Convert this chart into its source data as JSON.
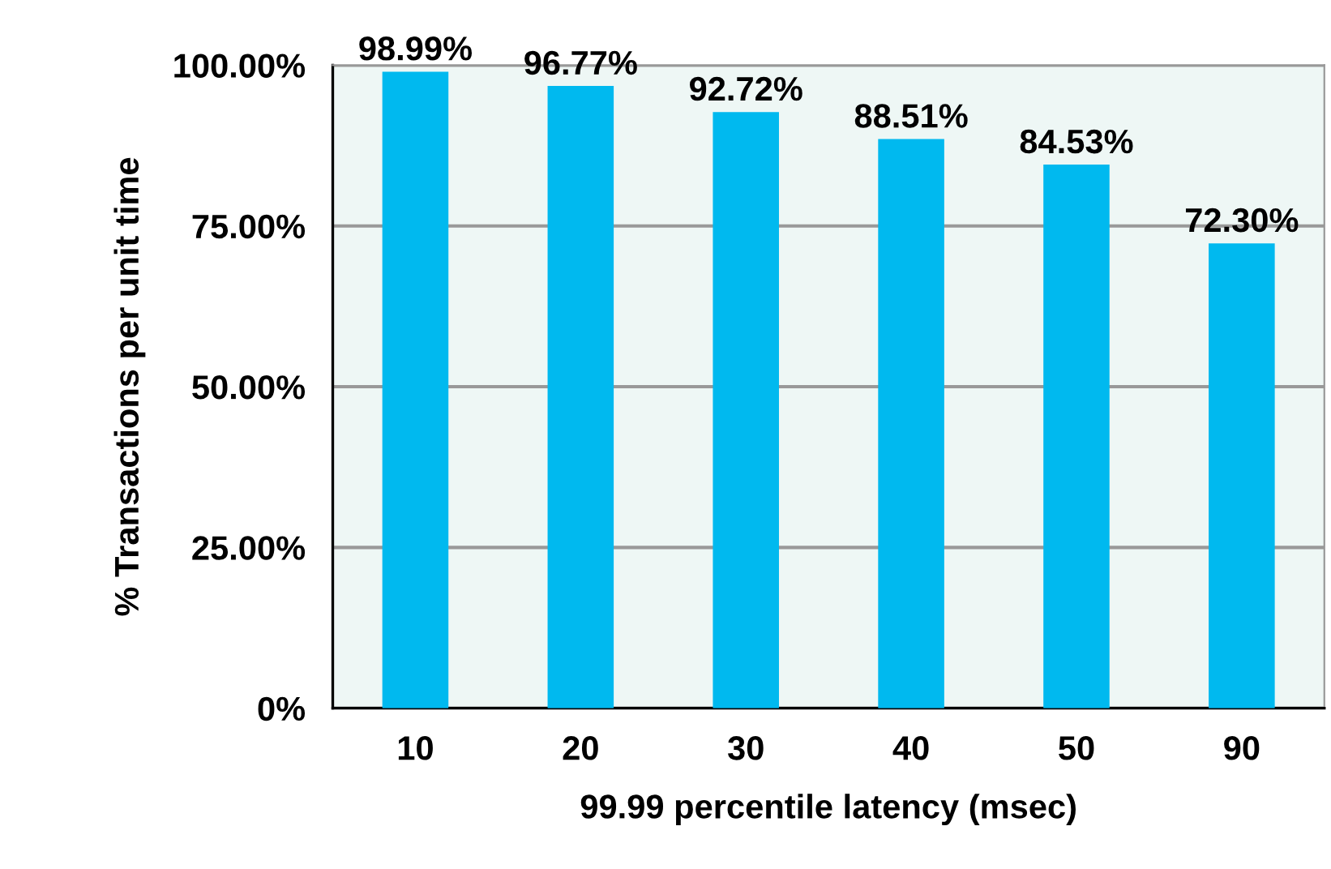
{
  "chart_data": {
    "type": "bar",
    "xlabel": "99.99 percentile latency (msec)",
    "ylabel": "% Transactions per unit time",
    "categories": [
      "10",
      "20",
      "30",
      "40",
      "50",
      "90"
    ],
    "values": [
      98.99,
      96.77,
      92.72,
      88.51,
      84.53,
      72.3
    ],
    "value_labels": [
      "98.99%",
      "96.77%",
      "92.72%",
      "88.51%",
      "84.53%",
      "72.30%"
    ],
    "color": "#00b9ef",
    "ylim": [
      0,
      100
    ],
    "yticks": [
      {
        "value": 0,
        "label": "0%"
      },
      {
        "value": 25,
        "label": "25.00%"
      },
      {
        "value": 50,
        "label": "50.00%"
      },
      {
        "value": 75,
        "label": "75.00%"
      },
      {
        "value": 100,
        "label": "100.00%"
      }
    ],
    "grid": "y",
    "legend": false
  }
}
